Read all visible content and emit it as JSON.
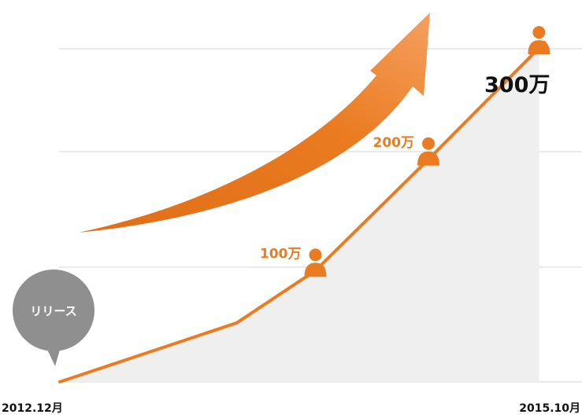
{
  "chart_data": {
    "type": "area",
    "x_start_label": "2012.12月",
    "x_end_label": "2015.10月",
    "points": [
      {
        "t": 0.0,
        "v": 0
      },
      {
        "t": 0.36,
        "v": 53
      },
      {
        "t": 0.52,
        "v": 100
      },
      {
        "t": 0.75,
        "v": 200
      },
      {
        "t": 0.975,
        "v": 300
      }
    ],
    "ylim": [
      0,
      310
    ],
    "milestones": [
      {
        "value": 100,
        "label": "100万"
      },
      {
        "value": 200,
        "label": "200万"
      },
      {
        "value": 300,
        "label": "300万"
      }
    ],
    "gridlines": 3,
    "colors": {
      "line": "#ea7b21",
      "area": "#efefef",
      "grid": "#d4d4d4",
      "arrow_light": "#f5a060",
      "arrow_dark": "#e06e17",
      "bubble": "#8f8f8f",
      "milestone_label": "#ea7b21",
      "major_label": "#111111"
    }
  },
  "release_bubble": {
    "label": "リリース",
    "icon": "speech-bubble"
  },
  "milestone_icon": "person-icon",
  "trend_arrow_icon": "curved-up-arrow-icon"
}
